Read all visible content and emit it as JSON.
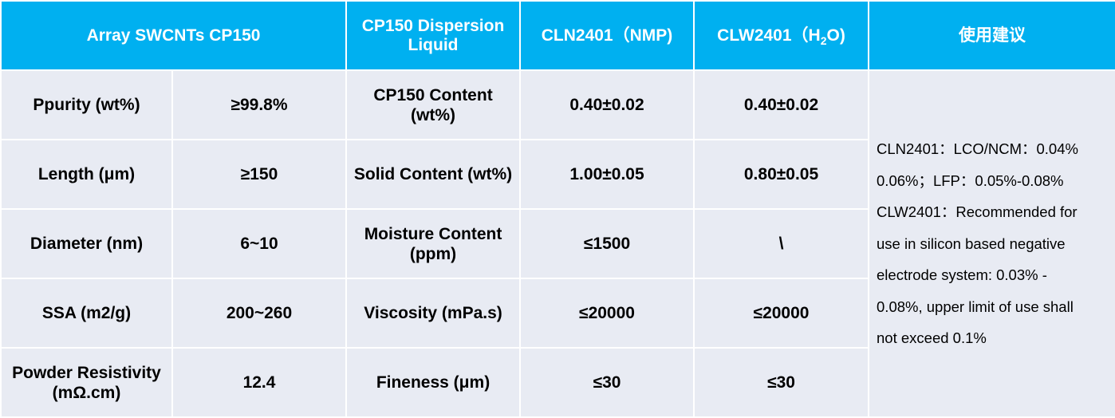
{
  "header": {
    "array_col": "Array SWCNTs CP150",
    "dispersion_col": "CP150 Dispersion Liquid",
    "cln_col": "CLN2401（NMP)",
    "clw_col_prefix": "CLW2401（H",
    "clw_col_sub": "2",
    "clw_col_suffix": "O)",
    "advice_col": "使用建议"
  },
  "rows": [
    {
      "property": "Ppurity (wt%)",
      "value": "≥99.8%",
      "parameter": "CP150 Content (wt%)",
      "cln": "0.40±0.02",
      "clw": "0.40±0.02"
    },
    {
      "property": "Length (μm)",
      "value": "≥150",
      "parameter": "Solid Content (wt%)",
      "cln": "1.00±0.05",
      "clw": "0.80±0.05"
    },
    {
      "property": "Diameter (nm)",
      "value": "6~10",
      "parameter": "Moisture Content (ppm)",
      "cln": "≤1500",
      "clw": "\\"
    },
    {
      "property": "SSA (m2/g)",
      "value": "200~260",
      "parameter": "Viscosity (mPa.s)",
      "cln": "≤20000",
      "clw": "≤20000"
    },
    {
      "property": "Powder Resistivity (mΩ.cm)",
      "value": "12.4",
      "parameter": "Fineness (μm)",
      "cln": "≤30",
      "clw": "≤30"
    }
  ],
  "advice_lines": [
    "CLN2401：LCO/NCM：0.04%",
    "0.06%；LFP：0.05%-0.08%",
    "CLW2401：Recommended for",
    "use in silicon based negative",
    "electrode system: 0.03% -",
    "0.08%, upper limit of use shall",
    "not exceed 0.1%"
  ],
  "colors": {
    "header_bg": "#00b0f0",
    "cell_bg": "#e8ebf3",
    "border": "#ffffff"
  }
}
